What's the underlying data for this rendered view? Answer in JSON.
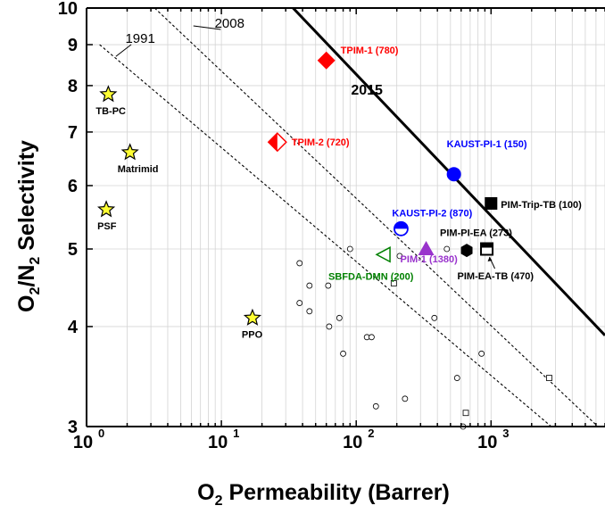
{
  "chart_data": {
    "type": "scatter",
    "x_scale": "log",
    "y_scale": "log",
    "xlim": [
      1,
      7000
    ],
    "ylim": [
      3,
      10
    ],
    "xlabel_main": "O",
    "xlabel_sub": "2",
    "xlabel_rest": " Permeability (Barrer)",
    "ylabel_a": "O",
    "ylabel_sub1": "2",
    "ylabel_b": "/N",
    "ylabel_sub2": "2",
    "ylabel_c": " Selectivity",
    "x_ticks": [
      {
        "value": 1,
        "base": "10",
        "exp": "0"
      },
      {
        "value": 10,
        "base": "10",
        "exp": "1"
      },
      {
        "value": 100,
        "base": "10",
        "exp": "2"
      },
      {
        "value": 1000,
        "base": "10",
        "exp": "3"
      }
    ],
    "y_ticks": [
      3,
      4,
      5,
      6,
      7,
      8,
      9,
      10
    ],
    "grid": true,
    "upper_bounds": [
      {
        "label": "1991",
        "style": "dashed",
        "p1": [
          1.25,
          9.0
        ],
        "p2": [
          2800,
          3.0
        ],
        "label_at": [
          2.5,
          9.05
        ]
      },
      {
        "label": "2008",
        "style": "dashed",
        "p1": [
          3.2,
          10.0
        ],
        "p2": [
          6200,
          3.0
        ],
        "label_at": [
          11.5,
          9.45
        ]
      },
      {
        "label": "2015",
        "style": "solid",
        "p1": [
          34,
          10.0
        ],
        "p2": [
          7000,
          3.9
        ],
        "label_at": [
          120,
          7.8
        ]
      }
    ],
    "labeled_points": [
      {
        "name": "TPIM-1 (780)",
        "x": 60,
        "y": 8.6,
        "marker": "diamond-filled",
        "color": "#ff0000",
        "label_dx": 16,
        "label_dy": -8
      },
      {
        "name": "TPIM-2 (720)",
        "x": 26,
        "y": 6.8,
        "marker": "diamond-half",
        "color": "#ff0000",
        "label_dx": 16,
        "label_dy": 4
      },
      {
        "name": "KAUST-PI-1 (150)",
        "x": 530,
        "y": 6.2,
        "marker": "circle-filled",
        "color": "#0000ff",
        "label_dx": -8,
        "label_dy": -30
      },
      {
        "name": "KAUST-PI-2 (870)",
        "x": 215,
        "y": 5.3,
        "marker": "circle-half",
        "color": "#0000ff",
        "label_dx": -10,
        "label_dy": -14
      },
      {
        "name": "PIM-Trip-TB (100)",
        "x": 1000,
        "y": 5.7,
        "marker": "square-filled",
        "color": "#000000",
        "label_dx": 11,
        "label_dy": 5
      },
      {
        "name": "PIM-PI-EA (273)",
        "x": 660,
        "y": 4.98,
        "marker": "hexagon-filled",
        "color": "#000000",
        "label_dx": -30,
        "label_dy": -16
      },
      {
        "name": "PIM-EA-TB (470)",
        "x": 930,
        "y": 5.0,
        "marker": "square-half",
        "color": "#000000",
        "label_dx": -33,
        "label_dy": 34
      },
      {
        "name": "PIM-1 (1380)",
        "x": 330,
        "y": 5.0,
        "marker": "triangle-up",
        "color": "#9933cc",
        "label_dx": -29,
        "label_dy": 15
      },
      {
        "name": "SBFDA-DMN (200)",
        "x": 160,
        "y": 4.92,
        "marker": "triangle-left-open",
        "color": "#008000",
        "label_dx": -62,
        "label_dy": 28
      },
      {
        "name": "TB-PC",
        "x": 1.45,
        "y": 7.8,
        "marker": "star",
        "color": "#ffff33",
        "label_dx": -14,
        "label_dy": 22
      },
      {
        "name": "Matrimid",
        "x": 2.1,
        "y": 6.6,
        "marker": "star",
        "color": "#ffff33",
        "label_dx": -14,
        "label_dy": 22
      },
      {
        "name": "PSF",
        "x": 1.4,
        "y": 5.6,
        "marker": "star",
        "color": "#ffff33",
        "label_dx": -10,
        "label_dy": 22
      },
      {
        "name": "PPO",
        "x": 17,
        "y": 4.1,
        "marker": "star",
        "color": "#ffff33",
        "label_dx": -12,
        "label_dy": 22
      }
    ],
    "open_circles": [
      [
        38,
        4.8
      ],
      [
        45,
        4.5
      ],
      [
        62,
        4.5
      ],
      [
        90,
        5.0
      ],
      [
        210,
        4.9
      ],
      [
        470,
        5.0
      ],
      [
        38,
        4.28
      ],
      [
        45,
        4.18
      ],
      [
        63,
        4.0
      ],
      [
        75,
        4.1
      ],
      [
        120,
        3.88
      ],
      [
        130,
        3.88
      ],
      [
        80,
        3.7
      ],
      [
        380,
        4.1
      ],
      [
        850,
        3.7
      ],
      [
        560,
        3.45
      ],
      [
        230,
        3.25
      ],
      [
        140,
        3.18
      ],
      [
        620,
        3.0
      ]
    ],
    "open_squares": [
      [
        190,
        4.53
      ],
      [
        650,
        3.12
      ],
      [
        2700,
        3.45
      ]
    ],
    "colors": {
      "axis": "#000000",
      "grid": "#d4d4d4",
      "red": "#ff0000",
      "blue": "#0000ff",
      "purple": "#9933cc",
      "green": "#008000",
      "star_fill": "#ffff33"
    }
  }
}
